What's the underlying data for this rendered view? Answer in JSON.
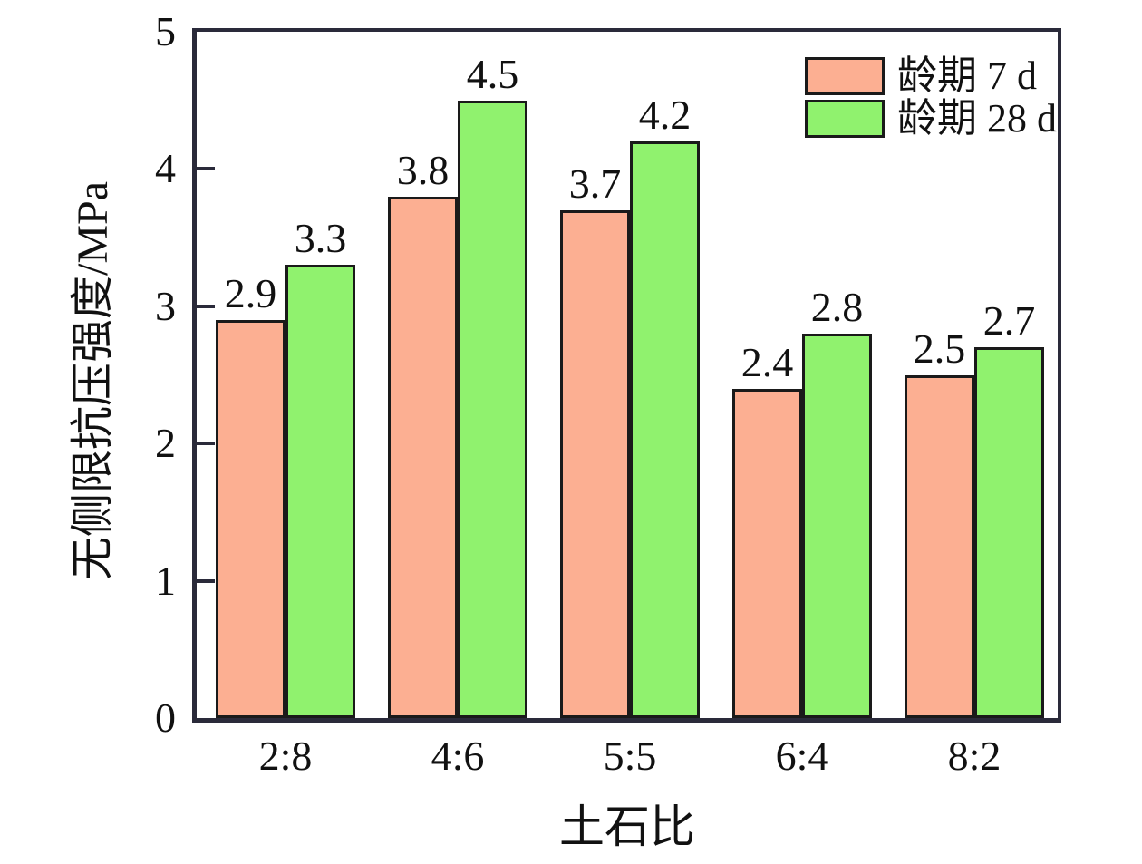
{
  "chart_data": {
    "type": "bar",
    "title": "",
    "categories": [
      "2:8",
      "4:6",
      "5:5",
      "6:4",
      "8:2"
    ],
    "series": [
      {
        "name": "龄期 7 d",
        "color": "#FCAF92",
        "values": [
          2.9,
          3.8,
          3.7,
          2.4,
          2.5
        ]
      },
      {
        "name": "龄期 28 d",
        "color": "#90F26E",
        "values": [
          3.3,
          4.5,
          4.2,
          2.8,
          2.7
        ]
      }
    ],
    "xlabel": "土石比",
    "ylabel": "无侧限抗压强度/MPa",
    "ylim": [
      0,
      5
    ],
    "yticks": [
      0,
      1,
      2,
      3,
      4,
      5
    ],
    "grid": false,
    "legend_position": "top-right",
    "data_labels": true,
    "bar_border_color": "#1a1a1a",
    "axis_color": "#2a2a3a",
    "text_color": "#111111"
  }
}
